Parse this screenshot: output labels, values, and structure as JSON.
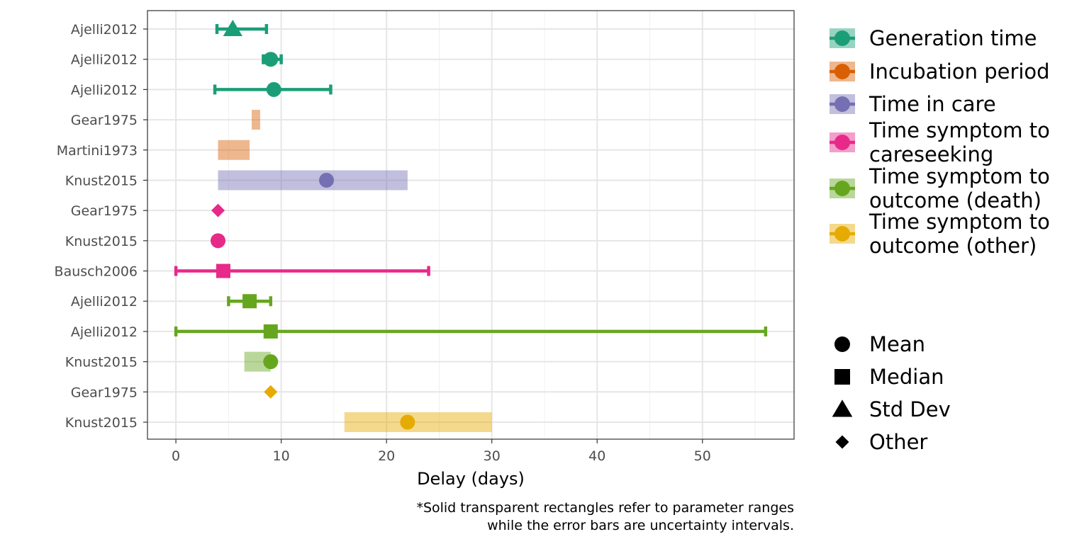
{
  "chart_data": {
    "type": "scatter",
    "xlabel": "Delay (days)",
    "xlim": [
      -2.7,
      58.7
    ],
    "x_ticks": [
      0,
      10,
      20,
      30,
      40,
      50
    ],
    "grid": true,
    "legend_position": "right",
    "caption": [
      "*Solid transparent rectangles refer to parameter ranges",
      "while the error bars are uncertainty intervals."
    ],
    "legend": {
      "parameters": [
        {
          "lines": [
            "Generation time"
          ],
          "color": "#1b9e77"
        },
        {
          "lines": [
            "Incubation period"
          ],
          "color": "#d95f02"
        },
        {
          "lines": [
            "Time in care"
          ],
          "color": "#7570b3"
        },
        {
          "lines": [
            "Time symptom to",
            "careseeking"
          ],
          "color": "#e7298a"
        },
        {
          "lines": [
            "Time symptom to",
            "outcome (death)"
          ],
          "color": "#66a61e"
        },
        {
          "lines": [
            "Time symptom to",
            "outcome (other)"
          ],
          "color": "#e6ab02"
        }
      ],
      "shapes": [
        {
          "label": "Mean",
          "shape": "circle"
        },
        {
          "label": "Median",
          "shape": "square"
        },
        {
          "label": "Std Dev",
          "shape": "triangle"
        },
        {
          "label": "Other",
          "shape": "diamond"
        }
      ]
    },
    "rows": [
      {
        "label": "Ajelli2012",
        "color": "#1b9e77",
        "shape": "triangle",
        "value": 5.4,
        "error": [
          3.9,
          8.6
        ]
      },
      {
        "label": "Ajelli2012",
        "color": "#1b9e77",
        "shape": "circle",
        "value": 9.0,
        "error": [
          8.3,
          10.0
        ]
      },
      {
        "label": "Ajelli2012",
        "color": "#1b9e77",
        "shape": "circle",
        "value": 9.3,
        "error": [
          3.7,
          14.7
        ]
      },
      {
        "label": "Gear1975",
        "color": "#d95f02",
        "range": [
          7.2,
          8.0
        ]
      },
      {
        "label": "Martini1973",
        "color": "#d95f02",
        "range": [
          4.0,
          7.0
        ]
      },
      {
        "label": "Knust2015",
        "color": "#7570b3",
        "shape": "circle",
        "value": 14.3,
        "range": [
          4.0,
          22.0
        ]
      },
      {
        "label": "Gear1975",
        "color": "#e7298a",
        "shape": "diamond",
        "value": 4.0
      },
      {
        "label": "Knust2015",
        "color": "#e7298a",
        "shape": "circle",
        "value": 4.0
      },
      {
        "label": "Bausch2006",
        "color": "#e7298a",
        "shape": "square",
        "value": 4.5,
        "error": [
          0,
          24.0
        ]
      },
      {
        "label": "Ajelli2012",
        "color": "#66a61e",
        "shape": "square",
        "value": 7.0,
        "error": [
          5.0,
          9.0
        ]
      },
      {
        "label": "Ajelli2012",
        "color": "#66a61e",
        "shape": "square",
        "value": 9.0,
        "error": [
          0,
          56.0
        ]
      },
      {
        "label": "Knust2015",
        "color": "#66a61e",
        "shape": "circle",
        "value": 9.0,
        "range": [
          6.5,
          9.0
        ]
      },
      {
        "label": "Gear1975",
        "color": "#e6ab02",
        "shape": "diamond",
        "value": 9.0
      },
      {
        "label": "Knust2015",
        "color": "#e6ab02",
        "shape": "circle",
        "value": 22.0,
        "range": [
          16.0,
          30.0
        ]
      }
    ]
  }
}
